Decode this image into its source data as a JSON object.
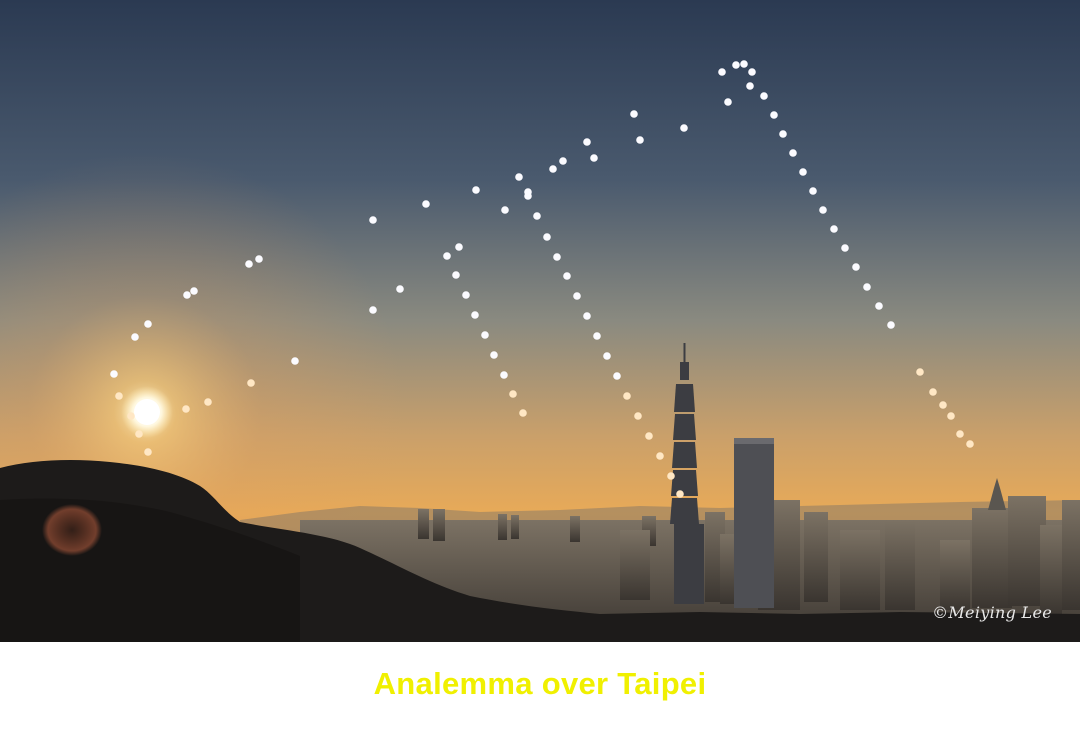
{
  "image": {
    "credit": "©Meiying Lee",
    "caption": "Analemma over Taipei"
  },
  "colors": {
    "caption": "#f0f000",
    "sky_top": "#2c3b52",
    "sky_horizon": "#e6a85a",
    "sun": "#fff6d8"
  }
}
